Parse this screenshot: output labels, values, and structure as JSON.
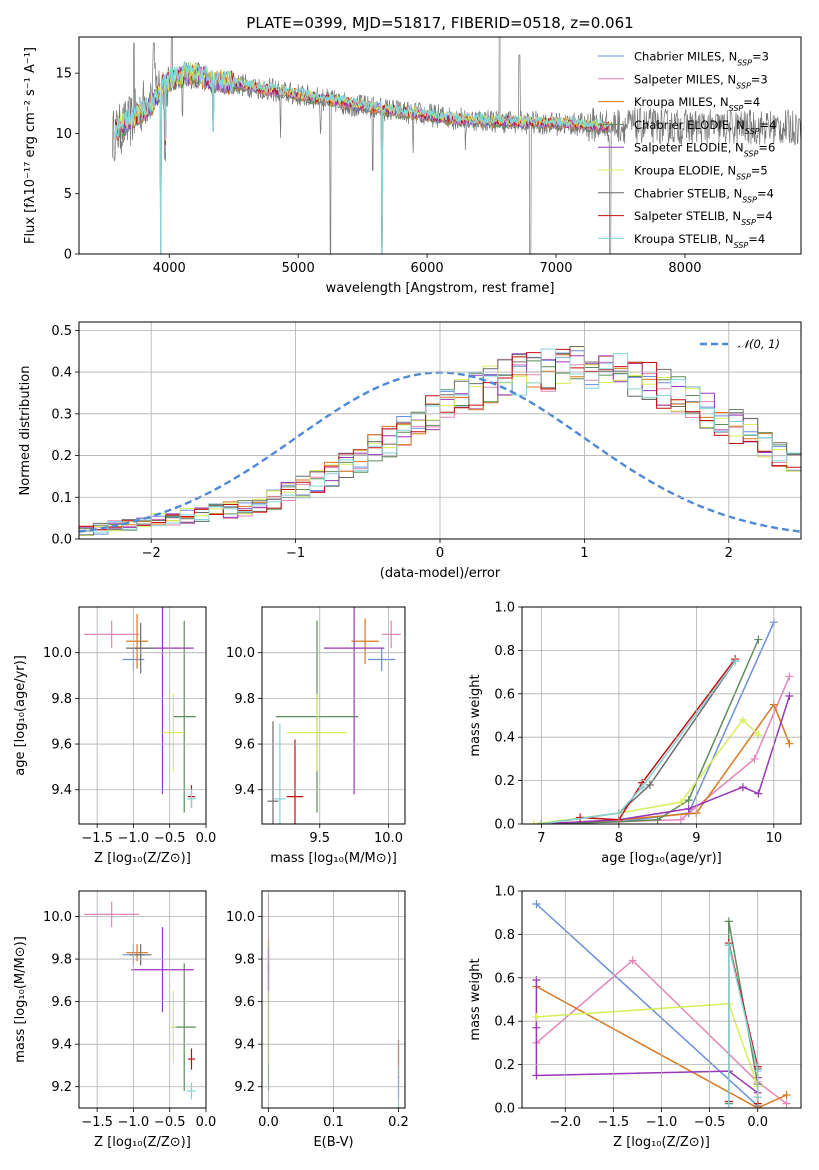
{
  "figure_title": "PLATE=0399, MJD=51817, FIBERID=0518, z=0.061",
  "series_colors": [
    "#6b8fd9",
    "#e486b8",
    "#d9781e",
    "#5e8c5a",
    "#9a36b8",
    "#d6ef5a",
    "#6c6c6c",
    "#c40e0e",
    "#84d4d8"
  ],
  "chart_data": [
    {
      "type": "line",
      "title": "PLATE=0399, MJD=51817, FIBERID=0518, z=0.061",
      "xlabel": "wavelength [Angstrom, rest frame]",
      "ylabel": "Flux [fλ10⁻¹⁷ erg cm⁻² s⁻¹ A⁻¹]",
      "xlim": [
        3300,
        8900
      ],
      "ylim": [
        0,
        18
      ],
      "xticks": [
        "4000",
        "5000",
        "6000",
        "7000",
        "8000"
      ],
      "yticks": [
        "0",
        "5",
        "10",
        "15"
      ],
      "legend_position": "upper right",
      "legend": [
        {
          "label": "Chabrier MILES, N",
          "sub": "SSP",
          "tail": "=3"
        },
        {
          "label": "Salpeter MILES, N",
          "sub": "SSP",
          "tail": "=3"
        },
        {
          "label": "Kroupa MILES, N",
          "sub": "SSP",
          "tail": "=4"
        },
        {
          "label": "Chabrier ELODIE, N",
          "sub": "SSP",
          "tail": "=4"
        },
        {
          "label": "Salpeter ELODIE, N",
          "sub": "SSP",
          "tail": "=6"
        },
        {
          "label": "Kroupa ELODIE, N",
          "sub": "SSP",
          "tail": "=5"
        },
        {
          "label": "Chabrier STELIB, N",
          "sub": "SSP",
          "tail": "=4"
        },
        {
          "label": "Salpeter STELIB, N",
          "sub": "SSP",
          "tail": "=4"
        },
        {
          "label": "Kroupa STELIB, N",
          "sub": "SSP",
          "tail": "=4"
        }
      ],
      "model_continuum": {
        "x": [
          3580,
          3650,
          3750,
          3850,
          3950,
          4050,
          4150,
          4250,
          4350,
          4500,
          4700,
          4900,
          5100,
          5300,
          5500,
          5700,
          5900,
          6100,
          6300,
          6500,
          6700,
          6900,
          7100,
          7300,
          7420
        ],
        "y": [
          10.2,
          10.8,
          11.5,
          12.2,
          14.0,
          14.6,
          15.0,
          14.8,
          14.3,
          14.2,
          13.7,
          13.4,
          13.0,
          12.7,
          12.3,
          11.9,
          11.6,
          11.3,
          11.1,
          11.0,
          10.9,
          10.9,
          10.8,
          10.6,
          10.5
        ]
      },
      "data_continuum": {
        "x": [
          3560,
          3700,
          3900,
          4100,
          4300,
          4600,
          5000,
          5400,
          5800,
          6200,
          6600,
          7000,
          7400,
          7800,
          8200,
          8600,
          8900
        ],
        "y": [
          9.8,
          11.0,
          13.8,
          14.8,
          14.4,
          14.0,
          13.2,
          12.4,
          11.8,
          11.3,
          11.0,
          10.8,
          10.7,
          10.6,
          10.5,
          10.5,
          10.5
        ]
      },
      "absorption_lines": [
        {
          "x": 3933,
          "depth": 18
        },
        {
          "x": 3968,
          "depth": 6
        },
        {
          "x": 4102,
          "depth": 3
        },
        {
          "x": 4340,
          "depth": 4
        },
        {
          "x": 4861,
          "depth": 3
        },
        {
          "x": 5175,
          "depth": 3
        },
        {
          "x": 5250,
          "depth": 13
        },
        {
          "x": 5577,
          "depth": 5
        },
        {
          "x": 5650,
          "depth": 18
        },
        {
          "x": 5890,
          "depth": 3
        },
        {
          "x": 6300,
          "depth": 2
        },
        {
          "x": 6800,
          "depth": 18
        },
        {
          "x": 7420,
          "depth": 15
        }
      ],
      "emission_lines": [
        {
          "x": 3727,
          "height": 17.5
        },
        {
          "x": 3880,
          "height": 17.5
        },
        {
          "x": 4020,
          "height": 18
        },
        {
          "x": 6563,
          "height": 18
        },
        {
          "x": 6716,
          "height": 16.5
        }
      ]
    },
    {
      "type": "histogram",
      "xlabel": "(data-model)/error",
      "ylabel": "Normed distribution",
      "xlim": [
        -2.5,
        2.5
      ],
      "ylim": [
        0,
        0.52
      ],
      "xticks": [
        "−2",
        "−1",
        "0",
        "1",
        "2"
      ],
      "yticks": [
        "0.0",
        "0.1",
        "0.2",
        "0.3",
        "0.4",
        "0.5"
      ],
      "legend": "𝒩(0, 1)",
      "legend_position": "upper right",
      "reference_curve": "normal(0,1)",
      "bin_width": 0.1,
      "bin_start": -2.5,
      "envelope": [
        0.02,
        0.025,
        0.03,
        0.035,
        0.04,
        0.045,
        0.05,
        0.055,
        0.06,
        0.065,
        0.07,
        0.075,
        0.085,
        0.095,
        0.11,
        0.125,
        0.14,
        0.155,
        0.175,
        0.195,
        0.215,
        0.235,
        0.255,
        0.275,
        0.3,
        0.32,
        0.34,
        0.355,
        0.37,
        0.385,
        0.395,
        0.4,
        0.405,
        0.41,
        0.41,
        0.405,
        0.4,
        0.395,
        0.385,
        0.375,
        0.36,
        0.345,
        0.33,
        0.31,
        0.29,
        0.27,
        0.25,
        0.23,
        0.21,
        0.19,
        0.17,
        0.15,
        0.13,
        0.11,
        0.095,
        0.08,
        0.07,
        0.06,
        0.05,
        0.045,
        0.04,
        0.035,
        0.03,
        0.025,
        0.02,
        0.02,
        0.018,
        0.016,
        0.015,
        0.014,
        0.013,
        0.012,
        0.011,
        0.01,
        0.01
      ]
    },
    {
      "type": "scatter",
      "xlabel": "Z [log₁₀(Z/Z⊙)]",
      "ylabel": "age  [log₁₀(age/yr)]",
      "xlim": [
        -1.75,
        0.0
      ],
      "ylim": [
        9.25,
        10.2
      ],
      "xticks": [
        "−1.5",
        "−1.0",
        "−0.5",
        "0.0"
      ],
      "yticks": [
        "9.4",
        "9.6",
        "9.8",
        "10.0"
      ],
      "points": [
        {
          "x": -1.0,
          "y": 9.97,
          "xerr": 0.15,
          "yerr": 0.05,
          "c": 0
        },
        {
          "x": -1.3,
          "y": 10.08,
          "xerr": 0.38,
          "yerr": 0.06,
          "c": 1
        },
        {
          "x": -0.95,
          "y": 10.05,
          "xerr": 0.15,
          "yerr": 0.12,
          "c": 2
        },
        {
          "x": -0.3,
          "y": 9.72,
          "xerr": 0.16,
          "yerr": 0.42,
          "c": 3
        },
        {
          "x": -0.6,
          "y": 10.02,
          "xerr": 0.43,
          "yerr": 0.64,
          "c": 4
        },
        {
          "x": -0.45,
          "y": 9.65,
          "xerr": 0.15,
          "yerr": 0.17,
          "c": 5
        },
        {
          "x": -0.9,
          "y": 10.02,
          "xerr": 0.2,
          "yerr": 0.11,
          "c": 6
        },
        {
          "x": -0.2,
          "y": 9.37,
          "xerr": 0.05,
          "yerr": 0.05,
          "c": 7
        },
        {
          "x": -0.2,
          "y": 9.36,
          "xerr": 0.06,
          "yerr": 0.04,
          "c": 8
        }
      ]
    },
    {
      "type": "scatter",
      "xlabel": "mass [log₁₀(M/M⊙)]",
      "ylabel": "",
      "xlim": [
        9.08,
        10.12
      ],
      "ylim": [
        9.25,
        10.2
      ],
      "xticks": [
        "9.5",
        "10.0"
      ],
      "yticks": [
        "9.4",
        "9.6",
        "9.8",
        "10.0"
      ],
      "points": [
        {
          "x": 9.95,
          "y": 9.97,
          "xerr": 0.1,
          "yerr": 0.05,
          "c": 0
        },
        {
          "x": 10.02,
          "y": 10.08,
          "xerr": 0.07,
          "yerr": 0.06,
          "c": 1
        },
        {
          "x": 9.83,
          "y": 10.05,
          "xerr": 0.1,
          "yerr": 0.1,
          "c": 2
        },
        {
          "x": 9.48,
          "y": 9.72,
          "xerr": 0.3,
          "yerr": 0.42,
          "c": 3
        },
        {
          "x": 9.75,
          "y": 10.02,
          "xerr": 0.22,
          "yerr": 0.64,
          "c": 4
        },
        {
          "x": 9.48,
          "y": 9.65,
          "xerr": 0.22,
          "yerr": 0.17,
          "c": 5
        },
        {
          "x": 9.16,
          "y": 9.35,
          "xerr": 0.04,
          "yerr": 0.35,
          "c": 6
        },
        {
          "x": 9.32,
          "y": 9.37,
          "xerr": 0.06,
          "yerr": 0.25,
          "c": 7
        },
        {
          "x": 9.21,
          "y": 9.36,
          "xerr": 0.04,
          "yerr": 0.33,
          "c": 8
        }
      ]
    },
    {
      "type": "line",
      "xlabel": "age  [log₁₀(age/yr)]",
      "ylabel": "mass weight",
      "xlim": [
        6.75,
        10.35
      ],
      "ylim": [
        0,
        1.0
      ],
      "xticks": [
        "7",
        "8",
        "9",
        "10"
      ],
      "yticks": [
        "0.0",
        "0.2",
        "0.4",
        "0.6",
        "0.8",
        "1.0"
      ],
      "series": [
        {
          "c": 0,
          "x": [
            7.0,
            8.0,
            8.9,
            10.0
          ],
          "y": [
            0.0,
            0.01,
            0.05,
            0.93
          ]
        },
        {
          "c": 1,
          "x": [
            7.0,
            8.8,
            9.75,
            10.2
          ],
          "y": [
            0.0,
            0.02,
            0.3,
            0.68
          ]
        },
        {
          "c": 2,
          "x": [
            7.0,
            8.0,
            9.0,
            10.0,
            10.2
          ],
          "y": [
            0.0,
            0.02,
            0.05,
            0.55,
            0.37
          ]
        },
        {
          "c": 3,
          "x": [
            7.0,
            8.0,
            8.5,
            8.9,
            9.8
          ],
          "y": [
            0.0,
            0.01,
            0.02,
            0.11,
            0.85
          ]
        },
        {
          "c": 4,
          "x": [
            7.0,
            8.0,
            8.9,
            9.6,
            9.8,
            10.2
          ],
          "y": [
            0.0,
            0.02,
            0.07,
            0.17,
            0.14,
            0.59
          ]
        },
        {
          "c": 5,
          "x": [
            6.9,
            8.0,
            8.8,
            9.6,
            9.8
          ],
          "y": [
            0.0,
            0.05,
            0.1,
            0.48,
            0.41
          ]
        },
        {
          "c": 6,
          "x": [
            7.0,
            8.0,
            8.4,
            9.5
          ],
          "y": [
            0.0,
            0.05,
            0.18,
            0.75
          ]
        },
        {
          "c": 7,
          "x": [
            7.5,
            8.0,
            8.3,
            9.5
          ],
          "y": [
            0.03,
            0.02,
            0.19,
            0.76
          ]
        },
        {
          "c": 8,
          "x": [
            7.0,
            8.0,
            8.3,
            9.5
          ],
          "y": [
            0.0,
            0.05,
            0.17,
            0.75
          ]
        }
      ]
    },
    {
      "type": "scatter",
      "xlabel": "Z [log₁₀(Z/Z⊙)]",
      "ylabel": "mass [log₁₀(M/M⊙)]",
      "xlim": [
        -1.75,
        0.0
      ],
      "ylim": [
        9.1,
        10.12
      ],
      "xticks": [
        "−1.5",
        "−1.0",
        "−0.5",
        "0.0"
      ],
      "yticks": [
        "9.2",
        "9.4",
        "9.6",
        "9.8",
        "10.0"
      ],
      "points": [
        {
          "x": -1.0,
          "y": 9.82,
          "xerr": 0.15,
          "yerr": 0.05,
          "c": 0
        },
        {
          "x": -1.3,
          "y": 10.01,
          "xerr": 0.38,
          "yerr": 0.06,
          "c": 1
        },
        {
          "x": -0.95,
          "y": 9.83,
          "xerr": 0.15,
          "yerr": 0.04,
          "c": 2
        },
        {
          "x": -0.3,
          "y": 9.48,
          "xerr": 0.16,
          "yerr": 0.3,
          "c": 3
        },
        {
          "x": -0.6,
          "y": 9.75,
          "xerr": 0.43,
          "yerr": 0.2,
          "c": 4
        },
        {
          "x": -0.45,
          "y": 9.48,
          "xerr": 0.04,
          "yerr": 0.17,
          "c": 5
        },
        {
          "x": -0.9,
          "y": 9.82,
          "xerr": 0.15,
          "yerr": 0.05,
          "c": 6
        },
        {
          "x": -0.2,
          "y": 9.33,
          "xerr": 0.05,
          "yerr": 0.05,
          "c": 7
        },
        {
          "x": -0.2,
          "y": 9.18,
          "xerr": 0.06,
          "yerr": 0.04,
          "c": 8
        }
      ]
    },
    {
      "type": "scatter",
      "xlabel": "E(B-V)",
      "ylabel": "",
      "xlim": [
        -0.01,
        0.21
      ],
      "ylim": [
        9.1,
        10.12
      ],
      "xticks": [
        "0.0",
        "0.1",
        "0.2"
      ],
      "yticks": [
        "9.2",
        "9.4",
        "9.6",
        "9.8",
        "10.0"
      ],
      "points": [
        {
          "x": 0.0,
          "y": 9.95,
          "xerr": 0.0,
          "yerr": 0.15,
          "c": 1
        },
        {
          "x": 0.0,
          "y": 9.82,
          "xerr": 0.0,
          "yerr": 0.08,
          "c": 2
        },
        {
          "x": 0.0,
          "y": 9.48,
          "xerr": 0.0,
          "yerr": 0.3,
          "c": 3
        },
        {
          "x": 0.0,
          "y": 9.75,
          "xerr": 0.0,
          "yerr": 0.1,
          "c": 4
        },
        {
          "x": 0.0,
          "y": 9.48,
          "xerr": 0.0,
          "yerr": 0.17,
          "c": 5
        },
        {
          "x": 0.2,
          "y": 9.33,
          "xerr": 0.0,
          "yerr": 0.09,
          "c": 7
        },
        {
          "x": 0.2,
          "y": 9.18,
          "xerr": 0.0,
          "yerr": 0.12,
          "c": 8
        },
        {
          "x": 0.2,
          "y": 9.2,
          "xerr": 0.0,
          "yerr": 0.05,
          "c": 0
        }
      ]
    },
    {
      "type": "line",
      "xlabel": "Z [log₁₀(Z/Z⊙)]",
      "ylabel": "mass weight",
      "xlim": [
        -2.45,
        0.45
      ],
      "ylim": [
        0,
        1.0
      ],
      "xticks": [
        "−2.0",
        "−1.5",
        "−1.0",
        "−0.5",
        "0.0"
      ],
      "yticks": [
        "0.0",
        "0.2",
        "0.4",
        "0.6",
        "0.8",
        "1.0"
      ],
      "series": [
        {
          "c": 0,
          "x": [
            -2.3,
            0.0,
            0.0
          ],
          "y": [
            0.94,
            0.01,
            0.05
          ]
        },
        {
          "c": 1,
          "x": [
            -2.3,
            -1.3,
            0.0,
            0.3
          ],
          "y": [
            0.3,
            0.68,
            0.12,
            0.02
          ]
        },
        {
          "c": 2,
          "x": [
            -2.3,
            0.0,
            0.3
          ],
          "y": [
            0.56,
            0.0,
            0.06
          ]
        },
        {
          "c": 3,
          "x": [
            -0.3,
            -0.3,
            0.0,
            0.0
          ],
          "y": [
            0.02,
            0.86,
            0.11,
            0.0
          ]
        },
        {
          "c": 4,
          "x": [
            -2.3,
            -2.3,
            -2.3,
            -0.3,
            0.0,
            0.0
          ],
          "y": [
            0.59,
            0.37,
            0.15,
            0.17,
            0.07,
            0.14
          ]
        },
        {
          "c": 5,
          "x": [
            -2.3,
            -0.3,
            0.0,
            0.0
          ],
          "y": [
            0.42,
            0.48,
            0.1,
            0.0
          ]
        },
        {
          "c": 6,
          "x": [
            -0.3,
            -0.3,
            0.0
          ],
          "y": [
            0.0,
            0.75,
            0.18
          ]
        },
        {
          "c": 7,
          "x": [
            -0.3,
            -0.3,
            0.0,
            0.0
          ],
          "y": [
            0.03,
            0.76,
            0.19,
            0.02
          ]
        },
        {
          "c": 8,
          "x": [
            -0.3,
            -0.3,
            0.0,
            0.0
          ],
          "y": [
            0.0,
            0.75,
            0.17,
            0.05
          ]
        }
      ]
    }
  ]
}
